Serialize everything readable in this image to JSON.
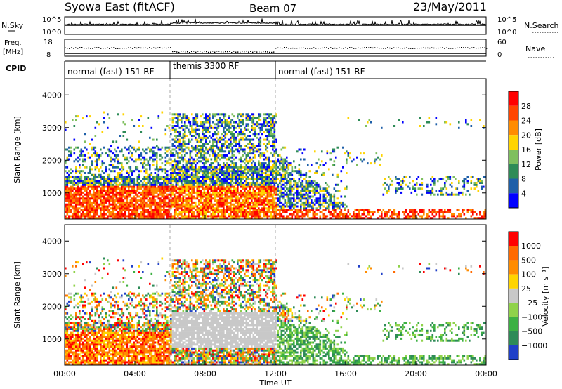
{
  "header": {
    "title": "Syowa East (fitACF)",
    "beam": "Beam 07",
    "date": "23/May/2011"
  },
  "noise_panel": {
    "left_label": "N.Sky",
    "right_label": "N.Search",
    "left_ticks": [
      "10^5",
      "10^0"
    ],
    "right_ticks": [
      "10^5",
      "10^0"
    ]
  },
  "freq_panel": {
    "left_label_top": "Freq.",
    "left_label_bottom": "[MHz]",
    "right_label": "Nave",
    "left_ticks": [
      "18",
      "8"
    ],
    "right_ticks": [
      "60",
      "0"
    ]
  },
  "cpid_panel": {
    "label": "CPID",
    "segments": [
      {
        "text": "normal (fast) 151 RF",
        "start_hour": 0,
        "end_hour": 6
      },
      {
        "text": "themis 3300 RF",
        "start_hour": 6,
        "end_hour": 12
      },
      {
        "text": "normal (fast) 151 RF",
        "start_hour": 12,
        "end_hour": 24
      }
    ]
  },
  "chart_data": [
    {
      "type": "heatmap",
      "ylabel": "Slant Range [km]",
      "y_ticks": [
        "1000",
        "2000",
        "3000",
        "4000"
      ],
      "colorbar_label": "Power [dB]",
      "colorbar_ticks": [
        "28",
        "24",
        "20",
        "16",
        "12",
        "8",
        "4"
      ],
      "colors": [
        "#0000ff",
        "#1e5fa8",
        "#2e8b57",
        "#7fbf5f",
        "#ffd400",
        "#ff8c00",
        "#ff4500",
        "#ff0000"
      ]
    },
    {
      "type": "heatmap",
      "ylabel": "Slant Range [km]",
      "y_ticks": [
        "1000",
        "2000",
        "3000",
        "4000"
      ],
      "colorbar_label": "Velocity [m s⁻¹]",
      "colorbar_ticks": [
        "1000",
        "500",
        "100",
        "25",
        "−25",
        "−100",
        "−500",
        "−1000"
      ],
      "colors": [
        "#2040c8",
        "#2e8b57",
        "#3cb043",
        "#8fd24a",
        "#c8c8c8",
        "#ffd400",
        "#ff8c00",
        "#ff6a00",
        "#ff0000"
      ]
    }
  ],
  "x_axis": {
    "ticks": [
      "00:00",
      "04:00",
      "08:00",
      "12:00",
      "16:00",
      "20:00",
      "00:00"
    ],
    "label": "Time UT"
  }
}
